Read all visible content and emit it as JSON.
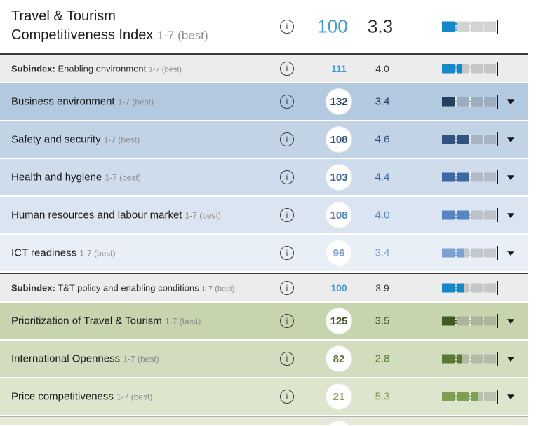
{
  "header": {
    "title_line1": "Travel & Tourism",
    "title_line2": "Competitiveness Index",
    "scale_suffix": "1-7 (best)",
    "rank": "100",
    "score": "3.3",
    "rank_color": "#3f9bd3",
    "bar": {
      "fill_pct": 28,
      "color": "#1488c8"
    }
  },
  "rows": [
    {
      "type": "subindex",
      "prefix": "Subindex:",
      "label": "Enabling environment",
      "suffix": "1-7 (best)",
      "rank": "111",
      "score": "4.0",
      "accent": "#1488c8",
      "rank_color": "#3f9bd3",
      "bg": "#ececec",
      "fill_pct": 38
    },
    {
      "type": "pillar",
      "label": "Business environment",
      "suffix": "1-7 (best)",
      "rank": "132",
      "score": "3.4",
      "accent": "#23405e",
      "bg": "#b3c9e0",
      "fill_pct": 25
    },
    {
      "type": "pillar",
      "label": "Safety and security",
      "suffix": "1-7 (best)",
      "rank": "108",
      "score": "4.6",
      "accent": "#2f5480",
      "bg": "#c2d3e6",
      "fill_pct": 51
    },
    {
      "type": "pillar",
      "label": "Health and hygiene",
      "suffix": "1-7 (best)",
      "rank": "103",
      "score": "4.4",
      "accent": "#3b69a5",
      "bg": "#cedcec",
      "fill_pct": 50
    },
    {
      "type": "pillar",
      "label": "Human resources and labour market",
      "suffix": "1-7 (best)",
      "rank": "108",
      "score": "4.0",
      "accent": "#5585c2",
      "bg": "#dbe5f1",
      "fill_pct": 52
    },
    {
      "type": "pillar",
      "label": "ICT readiness",
      "suffix": "1-7 (best)",
      "rank": "96",
      "score": "3.4",
      "accent": "#7aa0d4",
      "bg": "#e9eff7",
      "fill_pct": 41
    },
    {
      "type": "subindex",
      "prefix": "Subindex:",
      "label": "T&T policy and enabling conditions",
      "suffix": "1-7 (best)",
      "rank": "100",
      "score": "3.9",
      "accent": "#1488c8",
      "rank_color": "#3f9bd3",
      "bg": "#ececec",
      "fill_pct": 41
    },
    {
      "type": "pillar",
      "label": "Prioritization of Travel & Tourism",
      "suffix": "1-7 (best)",
      "rank": "125",
      "score": "3.5",
      "accent": "#3f5a26",
      "bg": "#c6d5ae",
      "fill_pct": 27
    },
    {
      "type": "pillar",
      "label": "International Openness",
      "suffix": "1-7 (best)",
      "rank": "82",
      "score": "2.8",
      "accent": "#5a7a33",
      "bg": "#d2ddbf",
      "fill_pct": 37
    },
    {
      "type": "pillar",
      "label": "Price competitiveness",
      "suffix": "1-7 (best)",
      "rank": "21",
      "score": "5.3",
      "accent": "#7f9f52",
      "bg": "#dde5cc",
      "fill_pct": 67
    },
    {
      "type": "partial",
      "bg": "#e5ebd8"
    }
  ],
  "icons": {
    "info": "i"
  }
}
